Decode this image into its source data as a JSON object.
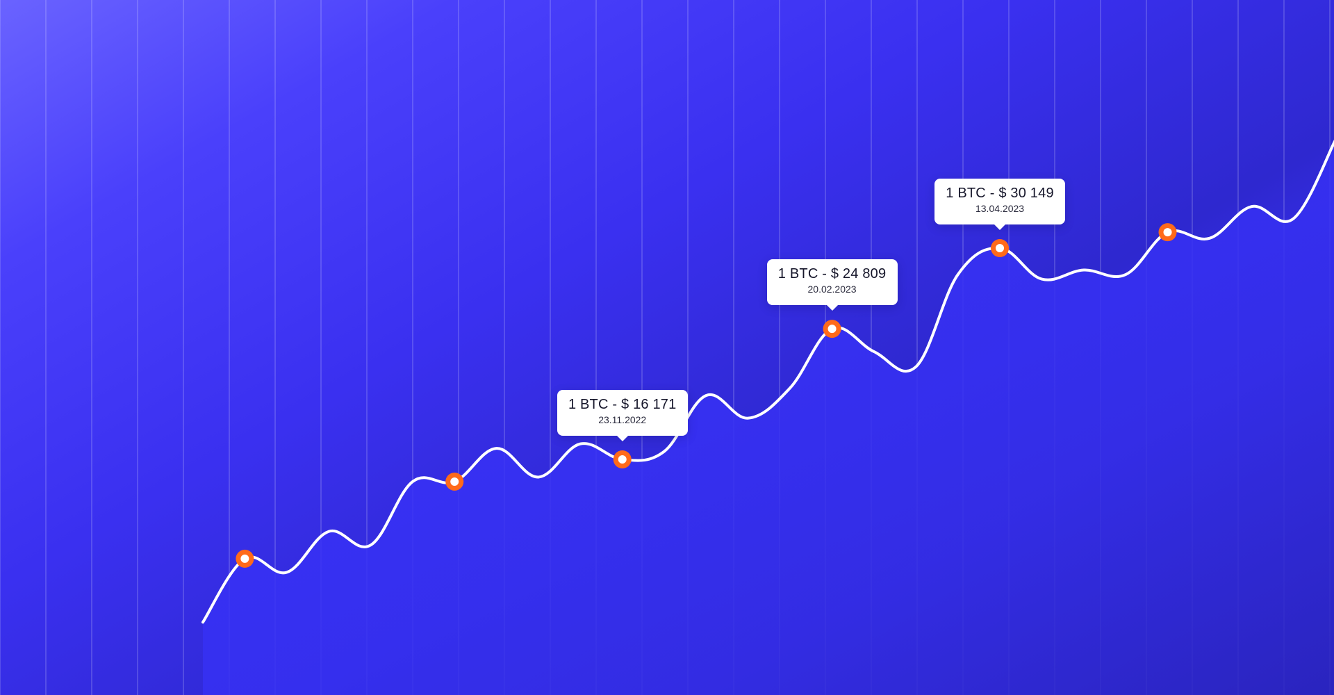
{
  "chart_data": {
    "type": "line",
    "title": "",
    "xlabel": "",
    "ylabel": "",
    "grid": "vertical-lines",
    "colors": {
      "line": "#ffffff",
      "marker": "#ff6a1a",
      "background_start": "#6a63ff",
      "background_end": "#2a23b8"
    },
    "series": [
      {
        "values": [
          5400,
          9600,
          8700,
          11400,
          10500,
          14700,
          14700,
          16900,
          15000,
          17200,
          16171,
          16700,
          20400,
          18900,
          20900,
          24809,
          23300,
          22300,
          28400,
          30149,
          28100,
          28700,
          28400,
          31200,
          30800,
          32900,
          32100,
          37300
        ]
      }
    ],
    "markers": [
      {
        "point_index": 1
      },
      {
        "point_index": 6
      },
      {
        "point_index": 10,
        "price_label": "1 BTC - $ 16 171",
        "date_label": "23.11.2022"
      },
      {
        "point_index": 15,
        "price_label": "1 BTC - $ 24 809",
        "date_label": "20.02.2023"
      },
      {
        "point_index": 19,
        "price_label": "1 BTC - $ 30 149",
        "date_label": "13.04.2023"
      },
      {
        "point_index": 23
      }
    ]
  }
}
